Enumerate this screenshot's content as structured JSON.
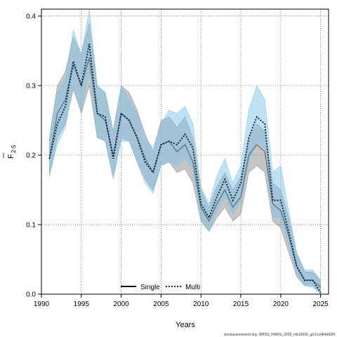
{
  "chart_data": {
    "type": "line",
    "xlabel": "Years",
    "ylabel_main": "F",
    "ylabel_sub": "2-5",
    "xlim": [
      1990,
      2026
    ],
    "ylim": [
      0.0,
      0.41
    ],
    "x_ticks": [
      1990,
      1995,
      2000,
      2005,
      2010,
      2015,
      2020,
      2025
    ],
    "y_ticks": [
      0.0,
      0.1,
      0.2,
      0.3,
      0.4
    ],
    "y_tick_labels": [
      "0.0",
      "0.1",
      "0.2",
      "0.3",
      "0.4"
    ],
    "grid": true,
    "legend_position": "bottom-center",
    "x": [
      1991,
      1992,
      1993,
      1994,
      1995,
      1996,
      1997,
      1998,
      1999,
      2000,
      2001,
      2002,
      2003,
      2004,
      2005,
      2006,
      2007,
      2008,
      2009,
      2010,
      2011,
      2012,
      2013,
      2014,
      2015,
      2016,
      2017,
      2018,
      2019,
      2020,
      2021,
      2022,
      2023,
      2024,
      2025
    ],
    "series": [
      {
        "name": "Single",
        "line_style": "solid",
        "line_color": "#000000",
        "band_color": "#8c8c8c",
        "values": [
          0.195,
          0.26,
          0.28,
          0.33,
          0.3,
          0.34,
          0.26,
          0.25,
          0.2,
          0.26,
          0.25,
          0.225,
          0.195,
          0.175,
          0.215,
          0.22,
          0.205,
          0.215,
          0.19,
          0.125,
          0.105,
          0.13,
          0.15,
          0.125,
          0.14,
          0.2,
          0.215,
          0.205,
          0.13,
          0.12,
          0.085,
          0.04,
          0.02,
          0.02,
          0.01
        ],
        "lower": [
          0.17,
          0.225,
          0.245,
          0.295,
          0.26,
          0.3,
          0.225,
          0.22,
          0.17,
          0.225,
          0.22,
          0.19,
          0.165,
          0.15,
          0.185,
          0.19,
          0.175,
          0.18,
          0.16,
          0.105,
          0.09,
          0.11,
          0.125,
          0.105,
          0.115,
          0.175,
          0.185,
          0.175,
          0.105,
          0.095,
          0.06,
          0.025,
          0.012,
          0.012,
          0.003
        ],
        "upper": [
          0.225,
          0.3,
          0.32,
          0.37,
          0.345,
          0.39,
          0.3,
          0.29,
          0.235,
          0.3,
          0.29,
          0.265,
          0.23,
          0.205,
          0.25,
          0.255,
          0.24,
          0.255,
          0.225,
          0.15,
          0.125,
          0.155,
          0.175,
          0.15,
          0.17,
          0.225,
          0.245,
          0.235,
          0.16,
          0.15,
          0.11,
          0.058,
          0.032,
          0.032,
          0.02
        ]
      },
      {
        "name": "Multi",
        "line_style": "dotted",
        "line_color": "#0a2a4a",
        "band_color": "#7fc4e8",
        "values": [
          0.195,
          0.245,
          0.27,
          0.335,
          0.3,
          0.36,
          0.26,
          0.255,
          0.195,
          0.26,
          0.25,
          0.225,
          0.19,
          0.175,
          0.215,
          0.22,
          0.215,
          0.23,
          0.21,
          0.13,
          0.11,
          0.14,
          0.165,
          0.135,
          0.16,
          0.225,
          0.255,
          0.245,
          0.135,
          0.135,
          0.09,
          0.04,
          0.02,
          0.02,
          0.002
        ],
        "lower": [
          0.17,
          0.215,
          0.24,
          0.3,
          0.265,
          0.32,
          0.225,
          0.22,
          0.165,
          0.22,
          0.22,
          0.19,
          0.16,
          0.145,
          0.185,
          0.19,
          0.185,
          0.195,
          0.18,
          0.11,
          0.09,
          0.12,
          0.14,
          0.115,
          0.135,
          0.19,
          0.22,
          0.21,
          0.11,
          0.11,
          0.07,
          0.03,
          0.012,
          0.01,
          0.0
        ],
        "upper": [
          0.225,
          0.29,
          0.31,
          0.38,
          0.345,
          0.41,
          0.3,
          0.29,
          0.235,
          0.3,
          0.28,
          0.26,
          0.225,
          0.21,
          0.245,
          0.265,
          0.26,
          0.27,
          0.245,
          0.155,
          0.13,
          0.17,
          0.195,
          0.16,
          0.185,
          0.265,
          0.3,
          0.28,
          0.175,
          0.185,
          0.12,
          0.06,
          0.035,
          0.035,
          0.02
        ]
      }
    ],
    "legend": [
      {
        "label": "Single"
      },
      {
        "label": "Multi"
      }
    ],
    "footnote": "stockassessment.org, WBSS_HAWG_2026_mb19560_git:1cc484b606f"
  }
}
